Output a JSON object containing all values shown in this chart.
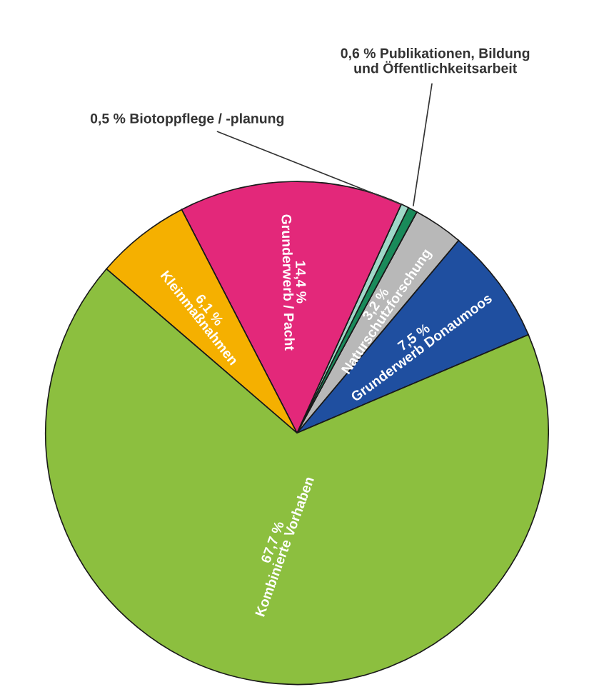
{
  "chart_data": {
    "type": "pie",
    "categories": [
      "Grunderwerb Donaumoos",
      "Naturschutzforschung",
      "Publikationen, Bildung und Öffentlichkeitsarbeit",
      "Biotoppflege / -planung",
      "Grunderwerb / Pacht",
      "Kleinmaßnahmen",
      "Kombinierte Vorhaben"
    ],
    "values": [
      7.5,
      3.2,
      0.6,
      0.5,
      14.4,
      6.1,
      67.7
    ],
    "value_labels": [
      "7,5 %",
      "3,2 %",
      "0,6 %",
      "0,5 %",
      "14,4 %",
      "6,1 %",
      "67,7 %"
    ],
    "colors": [
      "#1f4fa0",
      "#b8b8b8",
      "#1a8a5a",
      "#9fd8c8",
      "#e3287a",
      "#f5b000",
      "#8cbf3f"
    ]
  }
}
